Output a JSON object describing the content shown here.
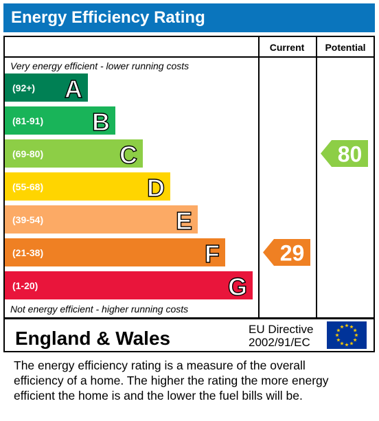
{
  "title": "Energy Efficiency Rating",
  "columns": {
    "current": "Current",
    "potential": "Potential"
  },
  "top_note": "Very energy efficient - lower running costs",
  "bottom_note": "Not energy efficient - higher running costs",
  "region": "England & Wales",
  "directive": {
    "line1": "EU Directive",
    "line2": "2002/91/EC"
  },
  "footer_lines": [
    "The energy efficiency rating is a measure of the overall",
    "efficiency of a home.  The higher the rating the more energy",
    "efficient the home is and the lower the fuel bills will be."
  ],
  "chart_data": {
    "type": "bar",
    "categories": [
      "A",
      "B",
      "C",
      "D",
      "E",
      "F",
      "G"
    ],
    "bands": [
      {
        "letter": "A",
        "range": "(92+)",
        "color": "#008054"
      },
      {
        "letter": "B",
        "range": "(81-91)",
        "color": "#19b459"
      },
      {
        "letter": "C",
        "range": "(69-80)",
        "color": "#8dce46"
      },
      {
        "letter": "D",
        "range": "(55-68)",
        "color": "#ffd500"
      },
      {
        "letter": "E",
        "range": "(39-54)",
        "color": "#fcaa65"
      },
      {
        "letter": "F",
        "range": "(21-38)",
        "color": "#ef8023"
      },
      {
        "letter": "G",
        "range": "(1-20)",
        "color": "#e9153b"
      }
    ],
    "current": {
      "value": 29,
      "band": "F",
      "color": "#ef8023"
    },
    "potential": {
      "value": 80,
      "band": "C",
      "color": "#8dce46"
    }
  }
}
